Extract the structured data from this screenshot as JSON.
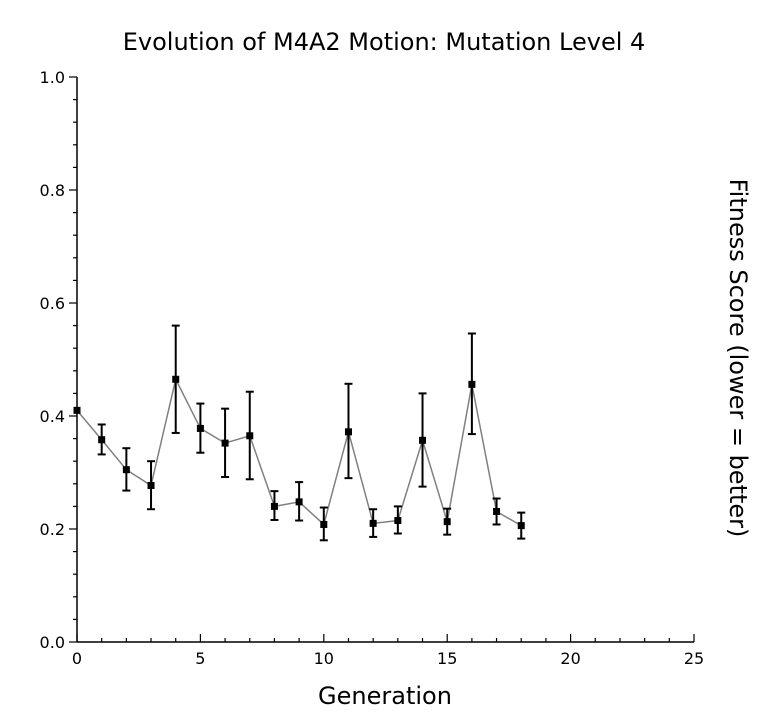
{
  "chart_data": {
    "type": "line",
    "title": "Evolution of M4A2 Motion: Mutation Level 4",
    "xlabel": "Generation",
    "ylabel": "Fitness Score (lower = better)",
    "xlim": [
      0,
      25
    ],
    "ylim": [
      0.0,
      1.0
    ],
    "x_ticks": [
      0,
      5,
      10,
      15,
      20,
      25
    ],
    "y_ticks": [
      0.0,
      0.2,
      0.4,
      0.6,
      0.8,
      1.0
    ],
    "x_tick_labels": [
      "0",
      "5",
      "10",
      "15",
      "20",
      "25"
    ],
    "y_tick_labels": [
      "0.0",
      "0.2",
      "0.4",
      "0.6",
      "0.8",
      "1.0"
    ],
    "grid": false,
    "series": [
      {
        "x": [
          0,
          1,
          2,
          3,
          4,
          5,
          6,
          7,
          8,
          9,
          10,
          11,
          12,
          13,
          14,
          15,
          16,
          17,
          18
        ],
        "y": [
          0.41,
          0.358,
          0.305,
          0.277,
          0.465,
          0.378,
          0.352,
          0.365,
          0.24,
          0.248,
          0.208,
          0.372,
          0.21,
          0.215,
          0.357,
          0.213,
          0.456,
          0.231,
          0.206
        ],
        "err_low": [
          0.41,
          0.332,
          0.268,
          0.235,
          0.37,
          0.335,
          0.292,
          0.288,
          0.216,
          0.215,
          0.18,
          0.29,
          0.186,
          0.192,
          0.275,
          0.19,
          0.368,
          0.208,
          0.183
        ],
        "err_high": [
          0.41,
          0.385,
          0.343,
          0.32,
          0.56,
          0.422,
          0.413,
          0.443,
          0.267,
          0.283,
          0.238,
          0.457,
          0.235,
          0.24,
          0.44,
          0.236,
          0.546,
          0.254,
          0.229
        ],
        "line_color": "#808080",
        "marker_color": "#000000"
      }
    ]
  }
}
